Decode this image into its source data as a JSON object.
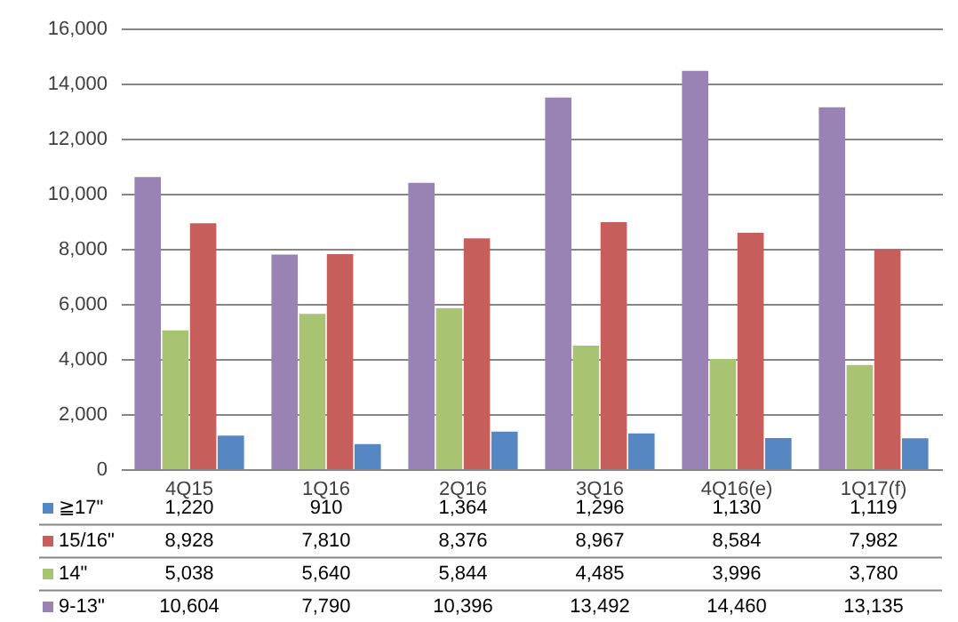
{
  "chart_data": {
    "type": "bar",
    "categories": [
      "4Q15",
      "1Q16",
      "2Q16",
      "3Q16",
      "4Q16(e)",
      "1Q17(f)"
    ],
    "series": [
      {
        "name": "9-13\"",
        "color": "#9983b5",
        "values": [
          10604,
          7790,
          10396,
          13492,
          14460,
          13135
        ],
        "value_labels": [
          "10,604",
          "7,790",
          "10,396",
          "13,492",
          "14,460",
          "13,135"
        ]
      },
      {
        "name": "14\"",
        "color": "#a8c472",
        "values": [
          5038,
          5640,
          5844,
          4485,
          3996,
          3780
        ],
        "value_labels": [
          "5,038",
          "5,640",
          "5,844",
          "4,485",
          "3,996",
          "3,780"
        ]
      },
      {
        "name": "15/16\"",
        "color": "#c65f5c",
        "values": [
          8928,
          7810,
          8376,
          8967,
          8584,
          7982
        ],
        "value_labels": [
          "8,928",
          "7,810",
          "8,376",
          "8,967",
          "8,584",
          "7,982"
        ]
      },
      {
        "name": "≧17\"",
        "color": "#5687c3",
        "values": [
          1220,
          910,
          1364,
          1296,
          1130,
          1119
        ],
        "value_labels": [
          "1,220",
          "910",
          "1,364",
          "1,296",
          "1,130",
          "1,119"
        ]
      }
    ],
    "ylim": [
      0,
      16000
    ],
    "yticks": [
      0,
      {
        "value": 2000,
        "label": "2,000"
      },
      {
        "value": 4000,
        "label": "4,000"
      },
      {
        "value": 6000,
        "label": "6,000"
      },
      {
        "value": 8000,
        "label": "8,000"
      },
      {
        "value": 10000,
        "label": "10,000"
      },
      {
        "value": 12000,
        "label": "12,000"
      },
      {
        "value": 14000,
        "label": "14,000"
      },
      {
        "value": 16000,
        "label": "16,000"
      }
    ],
    "grid": "y",
    "legend": "bottom left"
  }
}
